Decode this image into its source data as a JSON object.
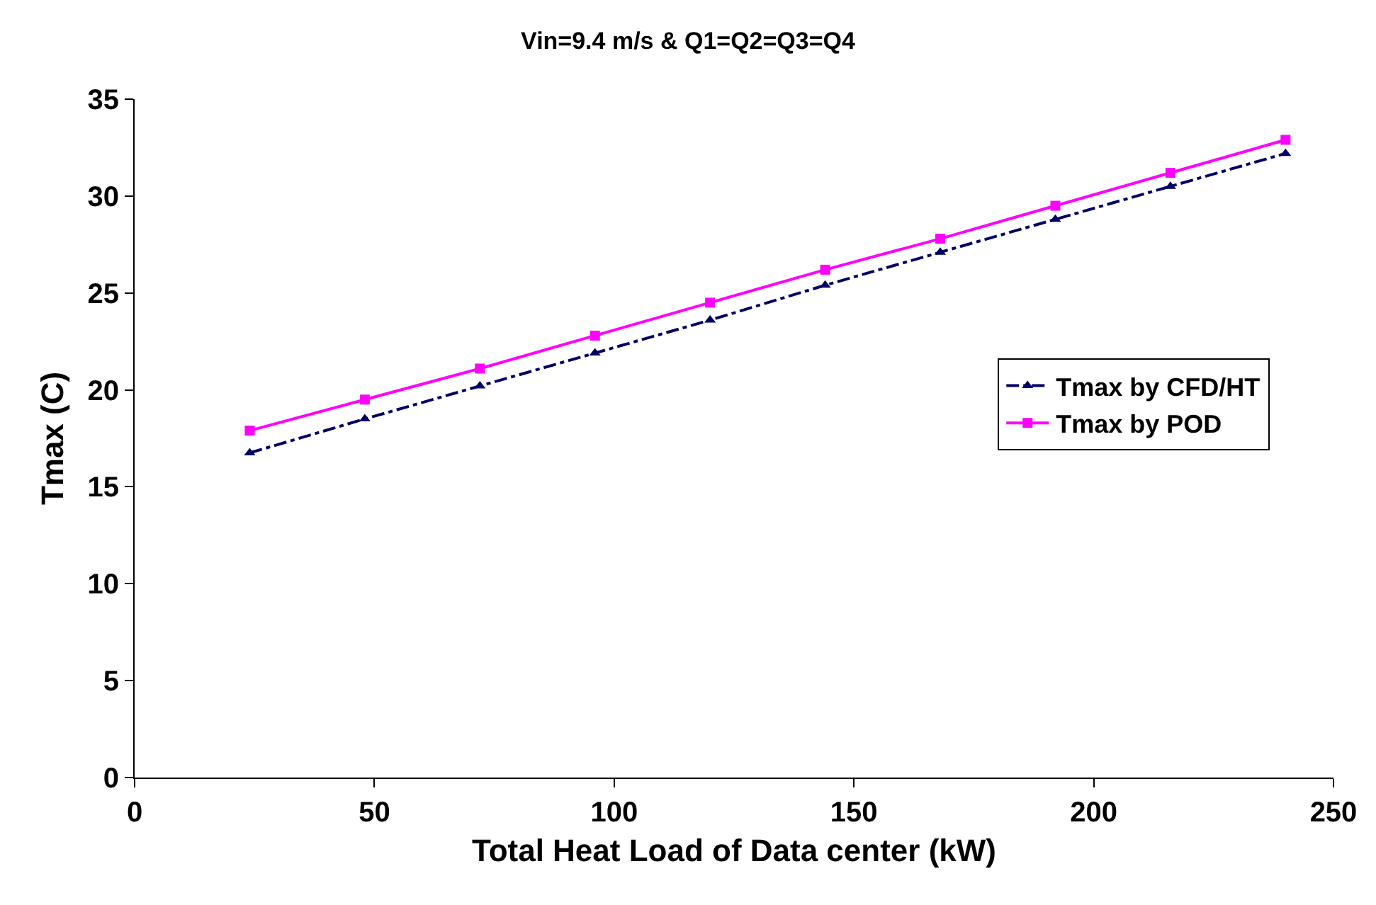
{
  "chart_data": {
    "type": "line",
    "title": "Vin=9.4 m/s & Q1=Q2=Q3=Q4",
    "xlabel": "Total Heat Load of Data center (kW)",
    "ylabel": "Tmax (C)",
    "x": [
      24,
      48,
      72,
      96,
      120,
      144,
      168,
      192,
      216,
      240
    ],
    "series": [
      {
        "name": "Tmax by CFD/HT",
        "color": "#000066",
        "marker": "triangle",
        "line_style": "dashdot",
        "values": [
          16.75,
          18.5,
          20.2,
          21.9,
          23.6,
          25.4,
          27.1,
          28.8,
          30.5,
          32.2
        ]
      },
      {
        "name": "Tmax by POD",
        "color": "#ff00ff",
        "marker": "square",
        "line_style": "solid",
        "values": [
          17.9,
          19.5,
          21.1,
          22.8,
          24.5,
          26.2,
          27.8,
          29.5,
          31.2,
          32.9
        ]
      }
    ],
    "xlim": [
      0,
      250
    ],
    "xticks": [
      0,
      50,
      100,
      150,
      200,
      250
    ],
    "ylim": [
      0,
      35
    ],
    "yticks": [
      0,
      5,
      10,
      15,
      20,
      25,
      30,
      35
    ],
    "grid": false,
    "legend": "right"
  }
}
